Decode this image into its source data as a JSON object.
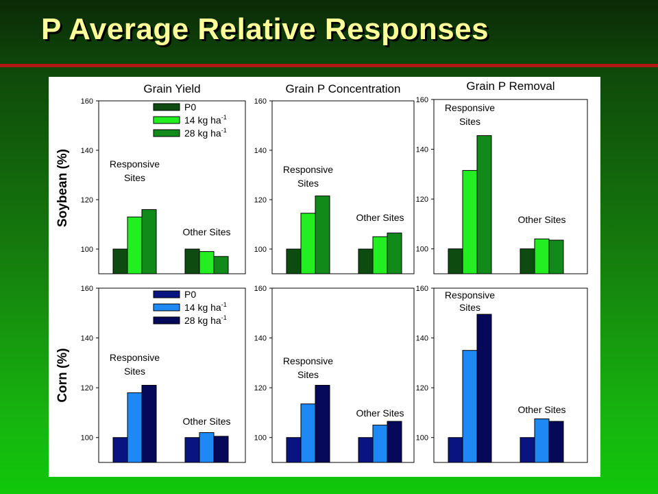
{
  "slide": {
    "title": "P Average Relative Responses",
    "colors": {
      "title": "#ffff99",
      "divider": "#b01818"
    }
  },
  "row_labels": [
    "Soybean (%)",
    "Corn (%)"
  ],
  "legend_labels": [
    "P0",
    "14 kg ha",
    "28 kg ha"
  ],
  "legend_superscript": "-1",
  "palettes": {
    "soybean": [
      "#0d4b10",
      "#22ee22",
      "#118a1a"
    ],
    "corn": [
      "#0a1480",
      "#1e88f5",
      "#06085a"
    ]
  },
  "chart_data": [
    {
      "type": "bar",
      "title": "Grain Yield",
      "ylabel": "Soybean (%)",
      "ylim": [
        90,
        160
      ],
      "yticks": [
        100,
        120,
        140,
        160
      ],
      "categories": [
        "Responsive Sites",
        "Other Sites"
      ],
      "series": [
        {
          "name": "P0",
          "values": [
            100,
            100
          ]
        },
        {
          "name": "14 kg ha-1",
          "values": [
            113,
            99
          ]
        },
        {
          "name": "28 kg ha-1",
          "values": [
            116,
            97
          ]
        }
      ],
      "annotations": [
        {
          "text": [
            "Responsive",
            "Sites"
          ]
        },
        {
          "text": [
            "Other Sites"
          ]
        }
      ],
      "legend": "top-right"
    },
    {
      "type": "bar",
      "title": "Grain P Concentration",
      "ylim": [
        90,
        160
      ],
      "yticks": [
        100,
        120,
        140,
        160
      ],
      "categories": [
        "Responsive Sites",
        "Other Sites"
      ],
      "series": [
        {
          "name": "P0",
          "values": [
            100,
            100
          ]
        },
        {
          "name": "14 kg ha-1",
          "values": [
            114.5,
            105
          ]
        },
        {
          "name": "28 kg ha-1",
          "values": [
            121.5,
            106.5
          ]
        }
      ],
      "annotations": [
        {
          "text": [
            "Responsive",
            "Sites"
          ]
        },
        {
          "text": [
            "Other Sites"
          ]
        }
      ]
    },
    {
      "type": "bar",
      "title": "Grain P Removal",
      "ylim": [
        90,
        160
      ],
      "yticks": [
        100,
        120,
        140,
        160
      ],
      "categories": [
        "Responsive Sites",
        "Other Sites"
      ],
      "series": [
        {
          "name": "P0",
          "values": [
            100,
            100
          ]
        },
        {
          "name": "14 kg ha-1",
          "values": [
            131.5,
            104
          ]
        },
        {
          "name": "28 kg ha-1",
          "values": [
            145.5,
            103.5
          ]
        }
      ],
      "annotations": [
        {
          "text": [
            "Responsive",
            "Sites"
          ]
        },
        {
          "text": [
            "Other Sites"
          ]
        }
      ]
    },
    {
      "type": "bar",
      "ylabel": "Corn (%)",
      "ylim": [
        90,
        160
      ],
      "yticks": [
        100,
        120,
        140,
        160
      ],
      "categories": [
        "Responsive Sites",
        "Other Sites"
      ],
      "series": [
        {
          "name": "P0",
          "values": [
            100,
            100
          ]
        },
        {
          "name": "14 kg ha-1",
          "values": [
            118,
            102
          ]
        },
        {
          "name": "28 kg ha-1",
          "values": [
            121,
            100.5
          ]
        }
      ],
      "annotations": [
        {
          "text": [
            "Responsive",
            "Sites"
          ]
        },
        {
          "text": [
            "Other Sites"
          ]
        }
      ],
      "legend": "top-right"
    },
    {
      "type": "bar",
      "ylim": [
        90,
        160
      ],
      "yticks": [
        100,
        120,
        140,
        160
      ],
      "categories": [
        "Responsive Sites",
        "Other Sites"
      ],
      "series": [
        {
          "name": "P0",
          "values": [
            100,
            100
          ]
        },
        {
          "name": "14 kg ha-1",
          "values": [
            113.5,
            105
          ]
        },
        {
          "name": "28 kg ha-1",
          "values": [
            121,
            106.5
          ]
        }
      ],
      "annotations": [
        {
          "text": [
            "Responsive",
            "Sites"
          ]
        },
        {
          "text": [
            "Other Sites"
          ]
        }
      ]
    },
    {
      "type": "bar",
      "ylim": [
        90,
        160
      ],
      "yticks": [
        100,
        120,
        140,
        160
      ],
      "categories": [
        "Responsive Sites",
        "Other Sites"
      ],
      "series": [
        {
          "name": "P0",
          "values": [
            100,
            100
          ]
        },
        {
          "name": "14 kg ha-1",
          "values": [
            135,
            107.5
          ]
        },
        {
          "name": "28 kg ha-1",
          "values": [
            149.5,
            106.5
          ]
        }
      ],
      "annotations": [
        {
          "text": [
            "Responsive",
            "Sites"
          ]
        },
        {
          "text": [
            "Other Sites"
          ]
        }
      ]
    }
  ]
}
